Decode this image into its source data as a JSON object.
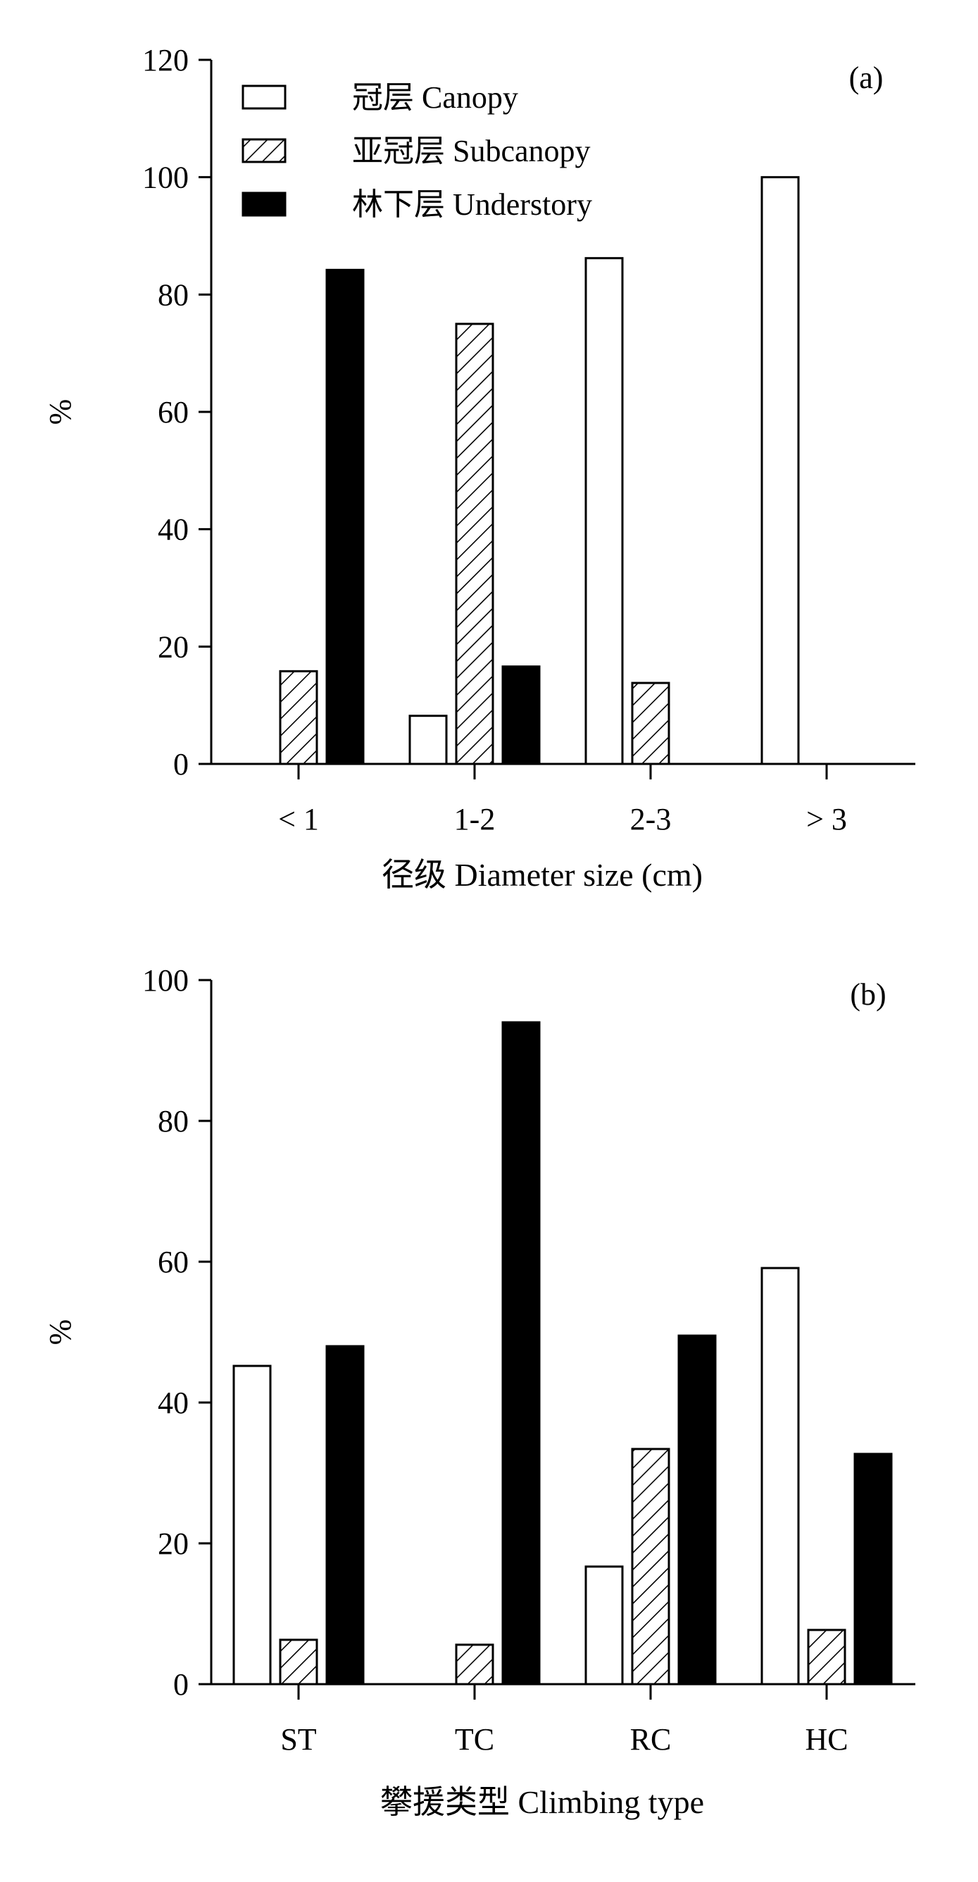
{
  "colors": {
    "canopy": "#ffffff",
    "subcanopy": "hatch",
    "understory": "#000000",
    "axis": "#000000"
  },
  "chart_data": [
    {
      "type": "bar",
      "panel_label": "(a)",
      "xlabel": "径级  Diameter size (cm)",
      "ylabel": "%",
      "categories": [
        "< 1",
        "1-2",
        "2-3",
        "> 3"
      ],
      "ylim": [
        0,
        120
      ],
      "yticks": [
        "0",
        "20",
        "40",
        "60",
        "80",
        "100",
        "120"
      ],
      "legend_position": "top-left",
      "series": [
        {
          "name": "冠层  Canopy",
          "fill": "white",
          "values": [
            0,
            8.2,
            86.2,
            100
          ]
        },
        {
          "name": "亚冠层  Subcanopy",
          "fill": "hatch",
          "values": [
            15.8,
            75.0,
            13.8,
            0
          ]
        },
        {
          "name": "林下层  Understory",
          "fill": "black",
          "values": [
            84.2,
            16.6,
            0,
            0
          ]
        }
      ]
    },
    {
      "type": "bar",
      "panel_label": "(b)",
      "xlabel": "攀援类型  Climbing type",
      "ylabel": "%",
      "categories": [
        "ST",
        "TC",
        "RC",
        "HC"
      ],
      "ylim": [
        0,
        100
      ],
      "yticks": [
        "0",
        "20",
        "40",
        "60",
        "80",
        "100"
      ],
      "series": [
        {
          "name": "冠层  Canopy",
          "fill": "white",
          "values": [
            45.2,
            0,
            16.7,
            59.1
          ]
        },
        {
          "name": "亚冠层  Subcanopy",
          "fill": "hatch",
          "values": [
            6.3,
            5.6,
            33.4,
            7.7
          ]
        },
        {
          "name": "林下层  Understory",
          "fill": "black",
          "values": [
            48.0,
            94.0,
            49.5,
            32.7
          ]
        }
      ]
    }
  ]
}
